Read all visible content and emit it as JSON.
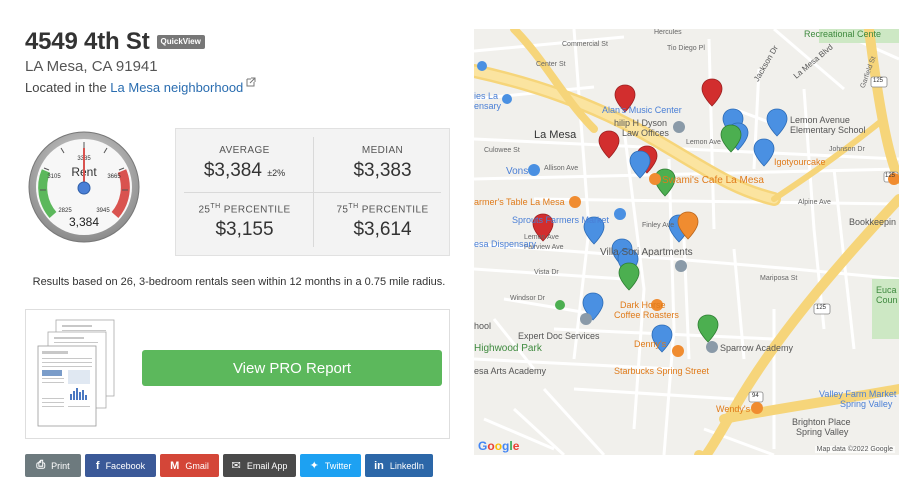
{
  "property": {
    "address": "4549 4th St",
    "badge": "QuickView",
    "city_line": "LA Mesa, CA 91941",
    "located_prefix": "Located in the ",
    "neighborhood_link": "La Mesa neighborhood"
  },
  "gauge": {
    "center_label": "Rent",
    "value": "3,384",
    "ticks": [
      "2825",
      "3105",
      "3385",
      "3665",
      "3945"
    ]
  },
  "stats": {
    "average_label": "AVERAGE",
    "average_value": "$3,384",
    "average_pm": "±2%",
    "median_label": "MEDIAN",
    "median_value": "$3,383",
    "p25_num": "25",
    "p25_sup": "TH",
    "p25_label": " PERCENTILE",
    "p25_value": "$3,155",
    "p75_num": "75",
    "p75_sup": "TH",
    "p75_label": " PERCENTILE",
    "p75_value": "$3,614"
  },
  "results_text": "Results based on 26, 3-bedroom rentals seen within 12 months in a 0.75 mile radius.",
  "pro": {
    "button_label": "View PRO Report"
  },
  "share": [
    {
      "label": "Print",
      "icon": "⎙",
      "color": "#6d7a7e"
    },
    {
      "label": "Facebook",
      "icon": "f",
      "color": "#3b5998"
    },
    {
      "label": "Gmail",
      "icon": "M",
      "color": "#d44638"
    },
    {
      "label": "Email App",
      "icon": "✉",
      "color": "#4a4a4a"
    },
    {
      "label": "Twitter",
      "icon": "✦",
      "color": "#1da1f2"
    },
    {
      "label": "LinkedIn",
      "icon": "in",
      "color": "#2c67a8"
    }
  ],
  "map": {
    "copyright": "Map data ©2022 Google",
    "google": "Google",
    "labels": {
      "commercial": "Commercial St",
      "hercules": "Hercules",
      "recreational": "Recreational Cente",
      "tio_diego": "Tio Diego Pl",
      "jackson": "Jackson Dr",
      "la_mesa_blvd": "La Mesa Blvd",
      "garfield": "Garfield St",
      "center_st": "Center St",
      "ies_la": "ies La",
      "ensary": "ensary",
      "alans": "Alan's Music Center",
      "hilip": "hilip H Dyson",
      "law": "Law Offices",
      "lemon_school_1": "Lemon Avenue",
      "lemon_school_2": "Elementary School",
      "la_mesa": "La Mesa",
      "culowee": "Culowee St",
      "lemon_ave": "Lemon Ave",
      "johnson": "Johnson Dr",
      "allison": "Allison Ave",
      "vons": "Vons",
      "swamis": "Swami's Cafe La Mesa",
      "igot": "Igotyourcake",
      "farmers": "armer's Table La Mesa",
      "alpine": "Alpine Ave",
      "bookkeeping": "Bookkeepin",
      "sprouts": "Sprouts Farmers Market",
      "finley": "Finley Ave",
      "lemon_ave2": "Lemon Ave",
      "fairview": "Fairview Ave",
      "esa_disp": "esa Dispensary",
      "villa": "Villa Sori Apartments",
      "vista": "Vista Dr",
      "mariposa": "Mariposa St",
      "windsor": "Windsor Dr",
      "dark_horse_1": "Dark Horse",
      "dark_horse_2": "Coffee Roasters",
      "euca": "Euca",
      "coun": "Coun",
      "hool": "hool",
      "expert": "Expert Doc Services",
      "highwood": "Highwood Park",
      "dennys": "Denny's",
      "sparrow": "Sparrow Academy",
      "esa_arts": "esa Arts Academy",
      "starbucks": "Starbucks Spring Street",
      "wendys": "Wendy's",
      "valley_1": "Valley Farm Market",
      "valley_2": "Spring Valley",
      "brighton_1": "Brighton Place",
      "brighton_2": "Spring Valley",
      "r125a": "125",
      "r125b": "125",
      "r125c": "125",
      "r94": "94"
    }
  }
}
